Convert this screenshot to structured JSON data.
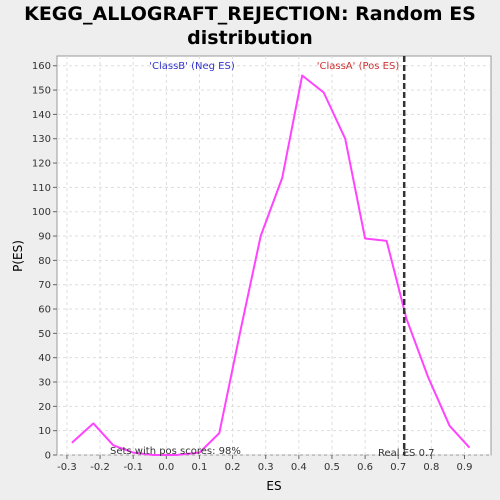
{
  "chart_data": {
    "type": "line",
    "title_lines": [
      "KEGG_ALLOGRAFT_REJECTION: Random ES",
      "distribution"
    ],
    "xlabel": "ES",
    "ylabel": "P(ES)",
    "xlim": [
      -0.33,
      0.98
    ],
    "ylim": [
      0,
      164
    ],
    "xticks": [
      "-0.3",
      "-0.2",
      "-0.1",
      "0.0",
      "0.1",
      "0.2",
      "0.3",
      "0.4",
      "0.5",
      "0.6",
      "0.7",
      "0.8",
      "0.9"
    ],
    "yticks": [
      "0",
      "10",
      "20",
      "30",
      "40",
      "50",
      "60",
      "70",
      "80",
      "90",
      "100",
      "110",
      "120",
      "130",
      "140",
      "150",
      "160"
    ],
    "grid": true,
    "series": [
      {
        "color": "#ff44ff",
        "x": [
          -0.285,
          -0.22,
          -0.16,
          -0.1,
          -0.04,
          0.03,
          0.1,
          0.16,
          0.225,
          0.285,
          0.35,
          0.41,
          0.475,
          0.54,
          0.6,
          0.665,
          0.725,
          0.79,
          0.855,
          0.915
        ],
        "y": [
          5,
          13,
          4,
          1,
          0,
          0,
          1,
          9,
          52,
          90,
          114,
          156,
          149,
          130,
          89,
          88,
          56,
          32,
          12,
          3
        ]
      }
    ],
    "real_es_line": {
      "x": 0.718,
      "color": "#333333"
    },
    "annotations": {
      "neg_label": "'ClassB' (Neg ES)",
      "neg_color": "#3333cc",
      "pos_label": "'ClassA' (Pos ES)",
      "pos_color": "#cc3333",
      "pos_scores": "Sets with pos scores: 98%",
      "real_es": "Real ES 0.7"
    }
  }
}
